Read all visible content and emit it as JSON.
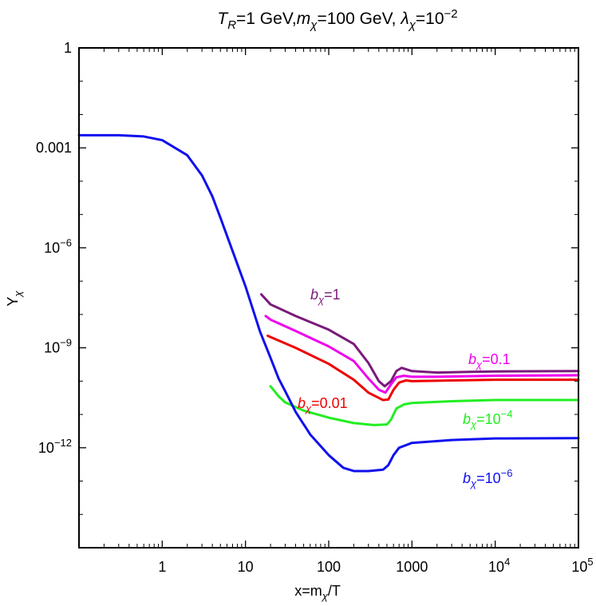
{
  "chart_data": {
    "type": "line",
    "title": {
      "parts": [
        {
          "text": "T",
          "italic": true
        },
        {
          "text": "R",
          "italic": true,
          "sub": true
        },
        {
          "text": "=1 GeV,"
        },
        {
          "text": "m",
          "italic": true
        },
        {
          "text": "χ",
          "italic": true,
          "sub": true
        },
        {
          "text": "=100 GeV, "
        },
        {
          "text": "λ",
          "italic": true
        },
        {
          "text": "χ",
          "italic": true,
          "sub": true
        },
        {
          "text": "=10"
        },
        {
          "text": "−2",
          "sup": true
        }
      ]
    },
    "xlabel": {
      "parts": [
        {
          "text": "x=m"
        },
        {
          "text": "χ",
          "italic": true,
          "sub": true
        },
        {
          "text": "/T"
        }
      ]
    },
    "ylabel": {
      "parts": [
        {
          "text": "Y"
        },
        {
          "text": "χ",
          "italic": true,
          "sub": true
        }
      ]
    },
    "x_scale": "log",
    "y_scale": "log",
    "xlim": [
      0.1,
      100000
    ],
    "ylim": [
      1e-15,
      1
    ],
    "x_ticks": [
      {
        "value": 1,
        "base": "1",
        "exp": ""
      },
      {
        "value": 10,
        "base": "10",
        "exp": ""
      },
      {
        "value": 100,
        "base": "100",
        "exp": ""
      },
      {
        "value": 1000,
        "base": "1000",
        "exp": ""
      },
      {
        "value": 10000,
        "base": "10",
        "exp": "4"
      },
      {
        "value": 100000,
        "base": "10",
        "exp": "5"
      }
    ],
    "y_ticks": [
      {
        "value": 1,
        "base": "1",
        "exp": ""
      },
      {
        "value": 0.001,
        "base": "0.001",
        "exp": ""
      },
      {
        "value": 1e-06,
        "base": "10",
        "exp": "−6"
      },
      {
        "value": 1e-09,
        "base": "10",
        "exp": "−9"
      },
      {
        "value": 1e-12,
        "base": "10",
        "exp": "−12"
      }
    ],
    "grid": false,
    "series": [
      {
        "name": "bχ=1",
        "label": {
          "pre": "b",
          "sub": "χ",
          "post": "=1",
          "exp": ""
        },
        "color": "#7a1a7a",
        "points": [
          [
            15.5,
            4e-08
          ],
          [
            20,
            2e-08
          ],
          [
            40,
            9e-09
          ],
          [
            100,
            3.5e-09
          ],
          [
            200,
            1.3e-09
          ],
          [
            300,
            3.5e-10
          ],
          [
            400,
            1e-10
          ],
          [
            470,
            7e-11
          ],
          [
            560,
            1e-10
          ],
          [
            650,
            2e-10
          ],
          [
            750,
            2.5e-10
          ],
          [
            1000,
            2e-10
          ],
          [
            2000,
            1.8e-10
          ],
          [
            5000,
            1.9e-10
          ],
          [
            10000,
            1.95e-10
          ],
          [
            100000,
            2e-10
          ]
        ]
      },
      {
        "name": "bχ=0.1",
        "label": {
          "pre": "b",
          "sub": "χ",
          "post": "=0.1",
          "exp": ""
        },
        "color": "#ee00ee",
        "points": [
          [
            17.5,
            9e-09
          ],
          [
            20,
            7e-09
          ],
          [
            40,
            3.2e-09
          ],
          [
            100,
            1.1e-09
          ],
          [
            200,
            4e-10
          ],
          [
            300,
            1.2e-10
          ],
          [
            400,
            5.5e-11
          ],
          [
            480,
            4.5e-11
          ],
          [
            560,
            8e-11
          ],
          [
            650,
            1.3e-10
          ],
          [
            800,
            1.45e-10
          ],
          [
            1000,
            1.35e-10
          ],
          [
            2000,
            1.35e-10
          ],
          [
            10000,
            1.45e-10
          ],
          [
            100000,
            1.5e-10
          ]
        ]
      },
      {
        "name": "bχ=0.01",
        "label": {
          "pre": "b",
          "sub": "χ",
          "post": "=0.01",
          "exp": ""
        },
        "color": "#ee0000",
        "points": [
          [
            18.5,
            2.3e-09
          ],
          [
            20,
            2.1e-09
          ],
          [
            40,
            1e-09
          ],
          [
            100,
            3.3e-10
          ],
          [
            200,
            1.1e-10
          ],
          [
            300,
            4.5e-11
          ],
          [
            450,
            2.7e-11
          ],
          [
            520,
            2.8e-11
          ],
          [
            600,
            5.5e-11
          ],
          [
            700,
            9e-11
          ],
          [
            850,
            1.05e-10
          ],
          [
            1000,
            1e-10
          ],
          [
            3000,
            1.05e-10
          ],
          [
            10000,
            1.1e-10
          ],
          [
            100000,
            1.1e-10
          ]
        ]
      },
      {
        "name": "bχ=10−4",
        "label": {
          "pre": "b",
          "sub": "χ",
          "post": "=10",
          "exp": "−4"
        },
        "color": "#22ee22",
        "points": [
          [
            20,
            7e-11
          ],
          [
            25,
            3.5e-11
          ],
          [
            30,
            2.3e-11
          ],
          [
            50,
            1.3e-11
          ],
          [
            100,
            8e-12
          ],
          [
            200,
            5.5e-12
          ],
          [
            350,
            4.8e-12
          ],
          [
            500,
            5e-12
          ],
          [
            560,
            7e-12
          ],
          [
            650,
            1.5e-11
          ],
          [
            800,
            2e-11
          ],
          [
            1000,
            2.2e-11
          ],
          [
            3000,
            2.5e-11
          ],
          [
            10000,
            2.7e-11
          ],
          [
            100000,
            2.7e-11
          ]
        ]
      },
      {
        "name": "bχ=10−6",
        "label": {
          "pre": "b",
          "sub": "χ",
          "post": "=10",
          "exp": "−6"
        },
        "color": "#1010ee",
        "points": [
          [
            0.1,
            0.0024
          ],
          [
            0.3,
            0.0024
          ],
          [
            0.6,
            0.0022
          ],
          [
            1,
            0.0017
          ],
          [
            2,
            0.0006
          ],
          [
            3,
            0.00015
          ],
          [
            4,
            3.5e-05
          ],
          [
            5,
            8e-06
          ],
          [
            7,
            8e-07
          ],
          [
            10,
            7e-08
          ],
          [
            15,
            3e-09
          ],
          [
            20,
            5e-10
          ],
          [
            25,
            1.2e-10
          ],
          [
            30,
            5e-11
          ],
          [
            40,
            1.2e-11
          ],
          [
            60,
            2.5e-12
          ],
          [
            100,
            6e-13
          ],
          [
            150,
            2.5e-13
          ],
          [
            200,
            2e-13
          ],
          [
            300,
            2e-13
          ],
          [
            450,
            2.2e-13
          ],
          [
            520,
            3e-13
          ],
          [
            600,
            6e-13
          ],
          [
            700,
            1e-12
          ],
          [
            1000,
            1.4e-12
          ],
          [
            3000,
            1.7e-12
          ],
          [
            10000,
            1.9e-12
          ],
          [
            100000,
            1.95e-12
          ]
        ]
      }
    ]
  }
}
